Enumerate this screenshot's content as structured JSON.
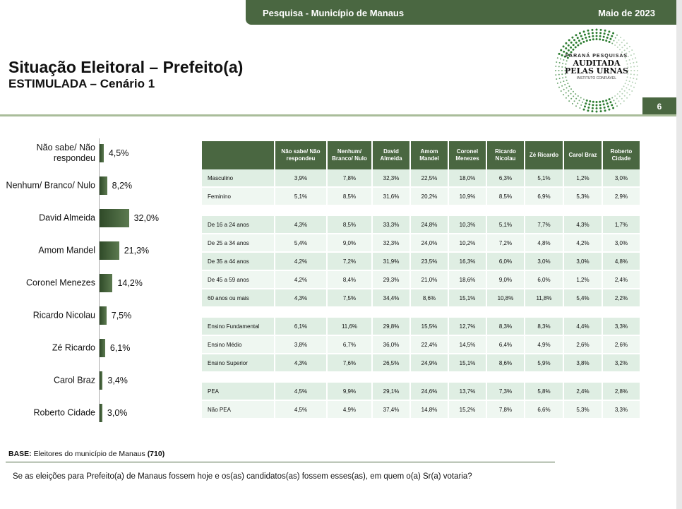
{
  "header": {
    "survey": "Pesquisa - Município de Manaus",
    "date": "Maio de 2023",
    "page": "6"
  },
  "title": "Situação Eleitoral – Prefeito(a)",
  "subtitle": "ESTIMULADA – Cenário 1",
  "logo": {
    "line1": "PARANÁ PESQUISAS",
    "line2": "AUDITADA",
    "line3": "PELAS URNAS",
    "line4": "INSTITUTO CONFIÁVEL"
  },
  "colors": {
    "primary": "#4a6741"
  },
  "chart_data": {
    "type": "bar",
    "orientation": "horizontal",
    "categories": [
      "Não sabe/ Não respondeu",
      "Nenhum/ Branco/ Nulo",
      "David Almeida",
      "Amom Mandel",
      "Coronel Menezes",
      "Ricardo Nicolau",
      "Zé Ricardo",
      "Carol Braz",
      "Roberto Cidade"
    ],
    "values": [
      4.5,
      8.2,
      32.0,
      21.3,
      14.2,
      7.5,
      6.1,
      3.4,
      3.0
    ],
    "labels": [
      "4,5%",
      "8,2%",
      "32,0%",
      "21,3%",
      "14,2%",
      "7,5%",
      "6,1%",
      "3,4%",
      "3,0%"
    ]
  },
  "table": {
    "headers": [
      "Não sabe/ Não respondeu",
      "Nenhum/ Branco/ Nulo",
      "David Almeida",
      "Amom Mandel",
      "Coronel Menezes",
      "Ricardo Nicolau",
      "Zé Ricardo",
      "Carol Braz",
      "Roberto Cidade"
    ],
    "groups": [
      [
        {
          "label": "Masculino",
          "values": [
            "3,9%",
            "7,8%",
            "32,3%",
            "22,5%",
            "18,0%",
            "6,3%",
            "5,1%",
            "1,2%",
            "3,0%"
          ]
        },
        {
          "label": "Feminino",
          "values": [
            "5,1%",
            "8,5%",
            "31,6%",
            "20,2%",
            "10,9%",
            "8,5%",
            "6,9%",
            "5,3%",
            "2,9%"
          ]
        }
      ],
      [
        {
          "label": "De 16 a 24 anos",
          "values": [
            "4,3%",
            "8,5%",
            "33,3%",
            "24,8%",
            "10,3%",
            "5,1%",
            "7,7%",
            "4,3%",
            "1,7%"
          ]
        },
        {
          "label": "De 25 a 34 anos",
          "values": [
            "5,4%",
            "9,0%",
            "32,3%",
            "24,0%",
            "10,2%",
            "7,2%",
            "4,8%",
            "4,2%",
            "3,0%"
          ]
        },
        {
          "label": "De 35 a 44 anos",
          "values": [
            "4,2%",
            "7,2%",
            "31,9%",
            "23,5%",
            "16,3%",
            "6,0%",
            "3,0%",
            "3,0%",
            "4,8%"
          ]
        },
        {
          "label": "De 45 a 59 anos",
          "values": [
            "4,2%",
            "8,4%",
            "29,3%",
            "21,0%",
            "18,6%",
            "9,0%",
            "6,0%",
            "1,2%",
            "2,4%"
          ]
        },
        {
          "label": "60 anos ou mais",
          "values": [
            "4,3%",
            "7,5%",
            "34,4%",
            "8,6%",
            "15,1%",
            "10,8%",
            "11,8%",
            "5,4%",
            "2,2%"
          ]
        }
      ],
      [
        {
          "label": "Ensino Fundamental",
          "values": [
            "6,1%",
            "11,6%",
            "29,8%",
            "15,5%",
            "12,7%",
            "8,3%",
            "8,3%",
            "4,4%",
            "3,3%"
          ]
        },
        {
          "label": "Ensino Médio",
          "values": [
            "3,8%",
            "6,7%",
            "36,0%",
            "22,4%",
            "14,5%",
            "6,4%",
            "4,9%",
            "2,6%",
            "2,6%"
          ]
        },
        {
          "label": "Ensino Superior",
          "values": [
            "4,3%",
            "7,6%",
            "26,5%",
            "24,9%",
            "15,1%",
            "8,6%",
            "5,9%",
            "3,8%",
            "3,2%"
          ]
        }
      ],
      [
        {
          "label": "PEA",
          "values": [
            "4,5%",
            "9,9%",
            "29,1%",
            "24,6%",
            "13,7%",
            "7,3%",
            "5,8%",
            "2,4%",
            "2,8%"
          ]
        },
        {
          "label": "Não PEA",
          "values": [
            "4,5%",
            "4,9%",
            "37,4%",
            "14,8%",
            "15,2%",
            "7,8%",
            "6,6%",
            "5,3%",
            "3,3%"
          ]
        }
      ]
    ]
  },
  "base": {
    "label": "BASE:",
    "text": " Eleitores do município de Manaus ",
    "n": "(710)"
  },
  "question": "Se as eleições para Prefeito(a) de Manaus fossem hoje e os(as) candidatos(as) fossem esses(as), em quem o(a) Sr(a) votaria?"
}
